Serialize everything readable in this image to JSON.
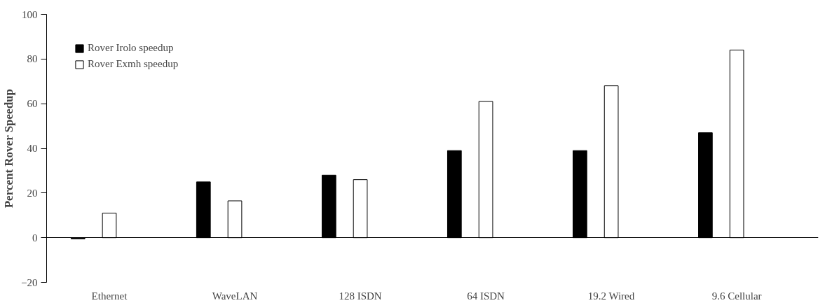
{
  "chart_data": {
    "type": "bar",
    "ylabel": "Percent Rover Speedup",
    "categories": [
      "Ethernet",
      "WaveLAN",
      "128 ISDN",
      "64 ISDN",
      "19.2 Wired",
      "9.6 Cellular"
    ],
    "series": [
      {
        "name": "Rover Irolo speedup",
        "color": "#000000",
        "values": [
          -0.5,
          25,
          28,
          39,
          39,
          47
        ]
      },
      {
        "name": "Rover Exmh speedup",
        "color": "#ffffff",
        "values": [
          11,
          16.5,
          26,
          61,
          68,
          84
        ]
      }
    ],
    "ylim": [
      -20,
      100
    ],
    "yticks": [
      -20,
      0,
      20,
      40,
      60,
      80,
      100
    ],
    "legend": "top left"
  }
}
